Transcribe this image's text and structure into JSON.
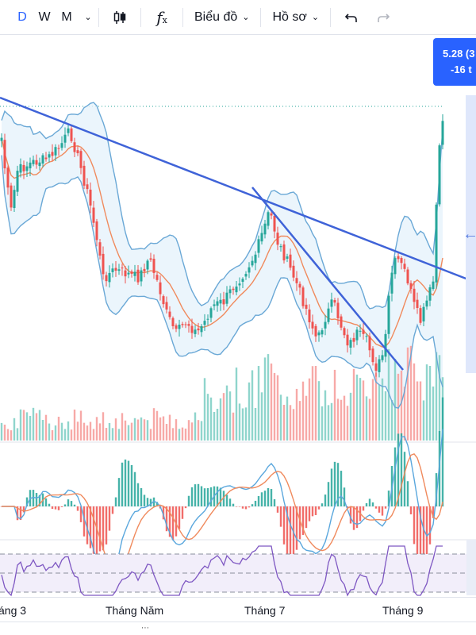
{
  "toolbar": {
    "timeframes": [
      "D",
      "W",
      "M"
    ],
    "active_timeframe": "D",
    "chart_menu_label": "Biểu đồ",
    "profile_menu_label": "Hồ sơ"
  },
  "price_label": {
    "price": "5.28 (3",
    "change": "-16 t"
  },
  "chart_data": {
    "type": "candlestick",
    "x_tick_labels": [
      "áng 3",
      "Tháng Năm",
      "Tháng 7",
      "Tháng 9"
    ],
    "indicators": [
      "Bollinger Bands",
      "Moving Average",
      "Volume",
      "MACD",
      "RSI"
    ],
    "price_range": [
      3.4,
      5.35
    ],
    "last_price": 5.28,
    "trendlines": 2,
    "colors": {
      "up": "#26a69a",
      "down": "#ef5350",
      "volume_up": "#8fd5cc",
      "volume_down": "#f7a9a7",
      "bollinger": "#6aa8d6",
      "bollinger_fill": "#e6f2fb",
      "ma": "#f08a5d",
      "trendline": "#3f63d8",
      "macd_line": "#5aa7dd",
      "signal_line": "#f08a5d",
      "rsi": "#7e57c2"
    }
  }
}
